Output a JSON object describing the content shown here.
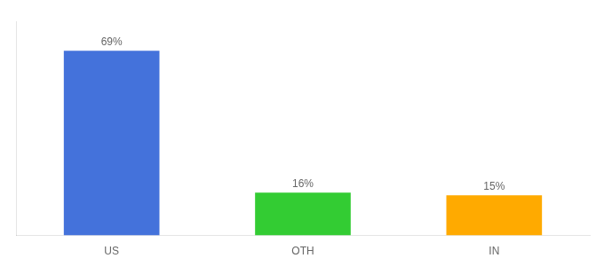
{
  "chart_data": {
    "type": "bar",
    "categories": [
      "US",
      "OTH",
      "IN"
    ],
    "values": [
      69,
      16,
      15
    ],
    "value_labels": [
      "69%",
      "16%",
      "15%"
    ],
    "colors": [
      "#4472db",
      "#33cc33",
      "#ffaa00"
    ],
    "ylim": [
      0,
      80
    ],
    "grid": false,
    "data_labels": true,
    "tick_labels": "x"
  }
}
